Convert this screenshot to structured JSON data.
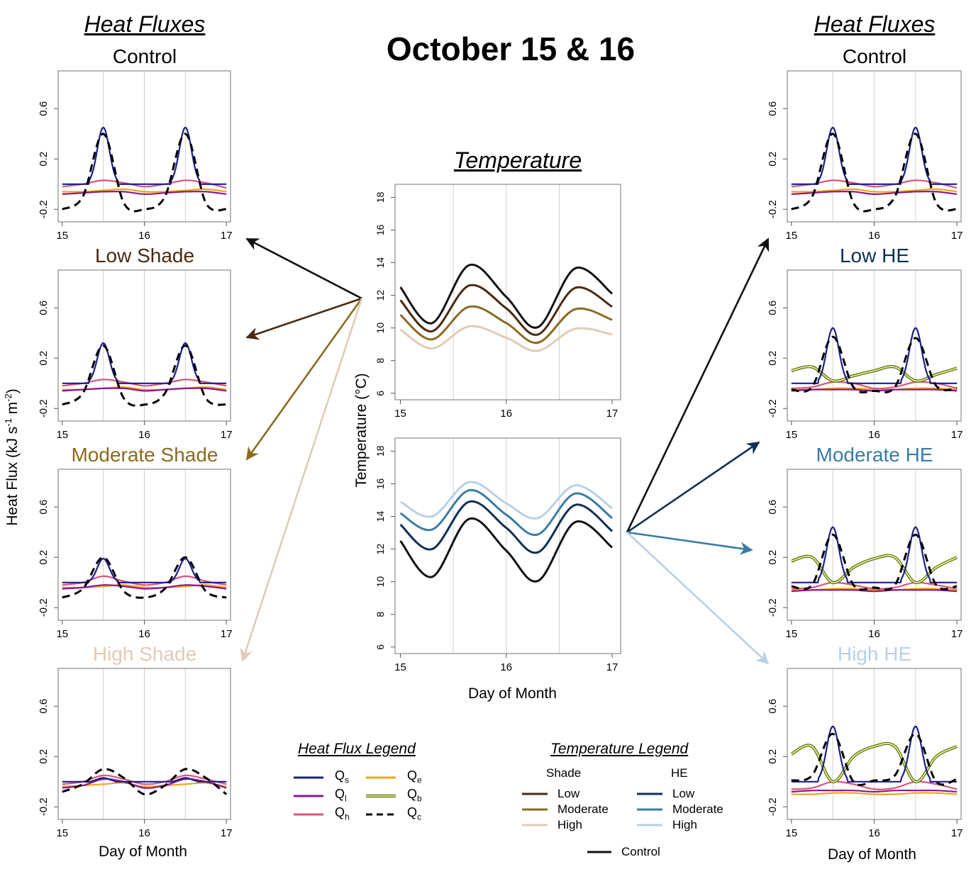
{
  "title": "October 15 & 16",
  "left_header": "Heat Fluxes",
  "right_header": "Heat Fluxes",
  "temperature_title": "Temperature",
  "flux_ylabel_main": "Heat Flux (kJ s",
  "flux_ylabel_sup1": "-1",
  "flux_ylabel_mid": " m",
  "flux_ylabel_sup2": "-2",
  "flux_ylabel_end": ")",
  "temp_ylabel": "Temperature (°C)",
  "xlabel": "Day of Month",
  "colors": {
    "Qs": "#1b1f8a",
    "Ql": "#8b1a8e",
    "Qh": "#d6587a",
    "Qe": "#f2a31b",
    "Qb": "#a8c43a",
    "Qc": "#000000",
    "control": "#111111",
    "shade_low": "#4a2a10",
    "shade_mod": "#8b6a20",
    "shade_high": "#e0cbb5",
    "he_low": "#0f2f55",
    "he_mod": "#3a7ca5",
    "he_high": "#b8d0e6"
  },
  "panels": {
    "control_left": "Control",
    "low_shade": "Low Shade",
    "mod_shade": "Moderate Shade",
    "high_shade": "High Shade",
    "control_right": "Control",
    "low_he": "Low HE",
    "mod_he": "Moderate HE",
    "high_he": "High HE"
  },
  "flux_legend": {
    "title": "Heat Flux Legend",
    "items": [
      {
        "base": "Q",
        "sub": "s"
      },
      {
        "base": "Q",
        "sub": "l"
      },
      {
        "base": "Q",
        "sub": "h"
      },
      {
        "base": "Q",
        "sub": "e"
      },
      {
        "base": "Q",
        "sub": "b"
      },
      {
        "base": "Q",
        "sub": "c"
      }
    ]
  },
  "temp_legend": {
    "title": "Temperature Legend",
    "shade_header": "Shade",
    "he_header": "HE",
    "levels": [
      "Low",
      "Moderate",
      "High"
    ],
    "control": "Control"
  },
  "chart_data": [
    {
      "type": "line",
      "panel": "Control (left)",
      "x": [
        15.0,
        15.25,
        15.5,
        15.75,
        16.0,
        16.25,
        16.5,
        16.75,
        17.0
      ],
      "xticks": [
        15,
        16,
        17
      ],
      "yticks": [
        -0.2,
        0.2,
        0.6
      ],
      "ylim": [
        -0.3,
        0.9
      ],
      "xlim": [
        14.95,
        17.05
      ],
      "series": [
        {
          "name": "Qs",
          "values": [
            0.0,
            0.0,
            0.45,
            0.0,
            0.0,
            0.0,
            0.45,
            0.0,
            0.0
          ]
        },
        {
          "name": "Qc",
          "values": [
            -0.2,
            -0.1,
            0.4,
            -0.15,
            -0.2,
            -0.1,
            0.4,
            -0.15,
            -0.2
          ]
        },
        {
          "name": "Qh",
          "values": [
            -0.02,
            0.0,
            0.03,
            0.01,
            -0.02,
            0.0,
            0.03,
            0.01,
            -0.03
          ]
        },
        {
          "name": "Ql",
          "values": [
            -0.08,
            -0.07,
            -0.06,
            -0.06,
            -0.08,
            -0.07,
            -0.06,
            -0.06,
            -0.08
          ]
        },
        {
          "name": "Qe",
          "values": [
            -0.06,
            -0.06,
            -0.05,
            -0.04,
            -0.06,
            -0.06,
            -0.05,
            -0.04,
            -0.06
          ]
        }
      ]
    },
    {
      "type": "line",
      "panel": "Low Shade",
      "x": [
        15.0,
        15.25,
        15.5,
        15.75,
        16.0,
        16.25,
        16.5,
        16.75,
        17.0
      ],
      "xticks": [
        15,
        16,
        17
      ],
      "yticks": [
        -0.2,
        0.2,
        0.6
      ],
      "ylim": [
        -0.3,
        0.9
      ],
      "xlim": [
        14.95,
        17.05
      ],
      "series": [
        {
          "name": "Qs",
          "values": [
            0.0,
            0.0,
            0.32,
            0.0,
            0.0,
            0.0,
            0.32,
            0.0,
            0.0
          ]
        },
        {
          "name": "Qc",
          "values": [
            -0.17,
            -0.08,
            0.3,
            -0.12,
            -0.17,
            -0.08,
            0.3,
            -0.12,
            -0.17
          ]
        },
        {
          "name": "Qh",
          "values": [
            -0.02,
            0.0,
            0.03,
            0.01,
            -0.02,
            0.0,
            0.03,
            0.01,
            -0.02
          ]
        },
        {
          "name": "Ql",
          "values": [
            -0.06,
            -0.05,
            -0.04,
            -0.04,
            -0.06,
            -0.05,
            -0.04,
            -0.04,
            -0.06
          ]
        },
        {
          "name": "Qe",
          "values": [
            -0.05,
            -0.05,
            -0.04,
            -0.03,
            -0.05,
            -0.05,
            -0.04,
            -0.03,
            -0.05
          ]
        }
      ]
    },
    {
      "type": "line",
      "panel": "Moderate Shade",
      "x": [
        15.0,
        15.25,
        15.5,
        15.75,
        16.0,
        16.25,
        16.5,
        16.75,
        17.0
      ],
      "xticks": [
        15,
        16,
        17
      ],
      "yticks": [
        -0.2,
        0.2,
        0.6
      ],
      "ylim": [
        -0.3,
        0.9
      ],
      "xlim": [
        14.95,
        17.05
      ],
      "series": [
        {
          "name": "Qs",
          "values": [
            0.0,
            0.0,
            0.19,
            0.0,
            0.0,
            0.0,
            0.19,
            0.0,
            0.0
          ]
        },
        {
          "name": "Qc",
          "values": [
            -0.12,
            -0.05,
            0.2,
            -0.07,
            -0.12,
            -0.05,
            0.2,
            -0.07,
            -0.12
          ]
        },
        {
          "name": "Qh",
          "values": [
            -0.02,
            0.0,
            0.05,
            0.01,
            -0.02,
            0.0,
            0.05,
            0.01,
            -0.02
          ]
        },
        {
          "name": "Ql",
          "values": [
            -0.05,
            -0.04,
            -0.02,
            -0.03,
            -0.05,
            -0.04,
            -0.02,
            -0.03,
            -0.05
          ]
        },
        {
          "name": "Qe",
          "values": [
            -0.04,
            -0.04,
            -0.03,
            -0.02,
            -0.04,
            -0.04,
            -0.03,
            -0.02,
            -0.04
          ]
        }
      ]
    },
    {
      "type": "line",
      "panel": "High Shade",
      "x": [
        15.0,
        15.25,
        15.5,
        15.75,
        16.0,
        16.25,
        16.5,
        16.75,
        17.0
      ],
      "xticks": [
        15,
        16,
        17
      ],
      "yticks": [
        -0.2,
        0.2,
        0.6
      ],
      "ylim": [
        -0.3,
        0.9
      ],
      "xlim": [
        14.95,
        17.05
      ],
      "series": [
        {
          "name": "Qs",
          "values": [
            0.0,
            0.0,
            0.03,
            0.0,
            0.0,
            0.0,
            0.03,
            0.0,
            0.0
          ]
        },
        {
          "name": "Qc",
          "values": [
            -0.08,
            -0.02,
            0.1,
            0.03,
            -0.1,
            -0.03,
            0.1,
            0.03,
            -0.1
          ]
        },
        {
          "name": "Qh",
          "values": [
            -0.02,
            0.0,
            0.05,
            0.02,
            -0.02,
            0.0,
            0.05,
            0.02,
            -0.02
          ]
        },
        {
          "name": "Ql",
          "values": [
            -0.05,
            -0.03,
            0.02,
            0.0,
            -0.05,
            -0.03,
            0.02,
            0.0,
            -0.05
          ]
        },
        {
          "name": "Qe",
          "values": [
            -0.04,
            -0.03,
            -0.02,
            -0.01,
            -0.04,
            -0.03,
            -0.02,
            -0.01,
            -0.04
          ]
        }
      ]
    },
    {
      "type": "line",
      "panel": "Control (right)",
      "x": [
        15.0,
        15.25,
        15.5,
        15.75,
        16.0,
        16.25,
        16.5,
        16.75,
        17.0
      ],
      "xticks": [
        15,
        16,
        17
      ],
      "yticks": [
        -0.2,
        0.2,
        0.6
      ],
      "ylim": [
        -0.3,
        0.9
      ],
      "xlim": [
        14.95,
        17.05
      ],
      "series": [
        {
          "name": "Qs",
          "values": [
            0.0,
            0.0,
            0.45,
            0.0,
            0.0,
            0.0,
            0.45,
            0.0,
            0.0
          ]
        },
        {
          "name": "Qc",
          "values": [
            -0.2,
            -0.1,
            0.4,
            -0.15,
            -0.2,
            -0.1,
            0.4,
            -0.15,
            -0.2
          ]
        },
        {
          "name": "Qh",
          "values": [
            -0.02,
            0.0,
            0.03,
            0.01,
            -0.02,
            0.0,
            0.03,
            0.01,
            -0.03
          ]
        },
        {
          "name": "Ql",
          "values": [
            -0.08,
            -0.07,
            -0.06,
            -0.06,
            -0.08,
            -0.07,
            -0.06,
            -0.06,
            -0.08
          ]
        },
        {
          "name": "Qe",
          "values": [
            -0.06,
            -0.06,
            -0.05,
            -0.04,
            -0.06,
            -0.06,
            -0.05,
            -0.04,
            -0.06
          ]
        }
      ]
    },
    {
      "type": "line",
      "panel": "Low HE",
      "x": [
        15.0,
        15.25,
        15.5,
        15.75,
        16.0,
        16.25,
        16.5,
        16.75,
        17.0
      ],
      "xticks": [
        15,
        16,
        17
      ],
      "yticks": [
        -0.2,
        0.2,
        0.6
      ],
      "ylim": [
        -0.3,
        0.9
      ],
      "xlim": [
        14.95,
        17.05
      ],
      "series": [
        {
          "name": "Qs",
          "values": [
            0.0,
            0.0,
            0.44,
            0.0,
            0.0,
            0.0,
            0.44,
            0.0,
            0.0
          ]
        },
        {
          "name": "Qc",
          "values": [
            -0.05,
            -0.03,
            0.37,
            -0.03,
            -0.06,
            -0.03,
            0.36,
            -0.02,
            -0.04
          ]
        },
        {
          "name": "Qb",
          "values": [
            0.1,
            0.13,
            0.02,
            0.06,
            0.1,
            0.13,
            0.02,
            0.07,
            0.12
          ]
        },
        {
          "name": "Qh",
          "values": [
            -0.04,
            -0.03,
            0.01,
            0.0,
            -0.04,
            -0.03,
            0.01,
            0.0,
            -0.04
          ]
        },
        {
          "name": "Ql",
          "values": [
            -0.06,
            -0.05,
            -0.05,
            -0.05,
            -0.06,
            -0.05,
            -0.05,
            -0.05,
            -0.06
          ]
        },
        {
          "name": "Qe",
          "values": [
            -0.05,
            -0.05,
            -0.04,
            -0.04,
            -0.05,
            -0.05,
            -0.04,
            -0.04,
            -0.05
          ]
        }
      ]
    },
    {
      "type": "line",
      "panel": "Moderate HE",
      "x": [
        15.0,
        15.25,
        15.5,
        15.75,
        16.0,
        16.25,
        16.5,
        16.75,
        17.0
      ],
      "xticks": [
        15,
        16,
        17
      ],
      "yticks": [
        -0.2,
        0.2,
        0.6
      ],
      "ylim": [
        -0.3,
        0.9
      ],
      "xlim": [
        14.95,
        17.05
      ],
      "series": [
        {
          "name": "Qs",
          "values": [
            0.0,
            0.0,
            0.44,
            0.0,
            0.0,
            0.0,
            0.44,
            0.0,
            0.0
          ]
        },
        {
          "name": "Qc",
          "values": [
            -0.03,
            -0.02,
            0.38,
            -0.02,
            -0.04,
            -0.02,
            0.38,
            -0.02,
            -0.03
          ]
        },
        {
          "name": "Qb",
          "values": [
            0.17,
            0.2,
            0.0,
            0.12,
            0.19,
            0.2,
            0.0,
            0.12,
            0.2
          ]
        },
        {
          "name": "Qh",
          "values": [
            -0.05,
            -0.04,
            0.0,
            -0.02,
            -0.05,
            -0.04,
            0.0,
            -0.02,
            -0.05
          ]
        },
        {
          "name": "Ql",
          "values": [
            -0.07,
            -0.06,
            -0.06,
            -0.06,
            -0.07,
            -0.06,
            -0.06,
            -0.06,
            -0.07
          ]
        },
        {
          "name": "Qe",
          "values": [
            -0.06,
            -0.06,
            -0.05,
            -0.05,
            -0.06,
            -0.06,
            -0.05,
            -0.05,
            -0.06
          ]
        }
      ]
    },
    {
      "type": "line",
      "panel": "High HE",
      "x": [
        15.0,
        15.25,
        15.5,
        15.75,
        16.0,
        16.25,
        16.5,
        16.75,
        17.0
      ],
      "xticks": [
        15,
        16,
        17
      ],
      "yticks": [
        -0.2,
        0.2,
        0.6
      ],
      "ylim": [
        -0.3,
        0.9
      ],
      "xlim": [
        14.95,
        17.05
      ],
      "series": [
        {
          "name": "Qs",
          "values": [
            0.0,
            0.0,
            0.44,
            0.0,
            0.0,
            0.0,
            0.44,
            0.0,
            0.0
          ]
        },
        {
          "name": "Qc",
          "values": [
            0.01,
            0.05,
            0.38,
            0.0,
            0.01,
            0.05,
            0.38,
            0.0,
            0.02
          ]
        },
        {
          "name": "Qb",
          "values": [
            0.22,
            0.28,
            0.0,
            0.2,
            0.28,
            0.28,
            0.0,
            0.2,
            0.28
          ]
        },
        {
          "name": "Qh",
          "values": [
            -0.06,
            -0.05,
            0.0,
            -0.02,
            -0.06,
            -0.05,
            0.0,
            -0.02,
            -0.06
          ]
        },
        {
          "name": "Ql",
          "values": [
            -0.08,
            -0.07,
            -0.07,
            -0.07,
            -0.08,
            -0.07,
            -0.07,
            -0.07,
            -0.08
          ]
        },
        {
          "name": "Qe",
          "values": [
            -0.1,
            -0.1,
            -0.09,
            -0.09,
            -0.1,
            -0.1,
            -0.09,
            -0.09,
            -0.1
          ]
        }
      ]
    },
    {
      "type": "line",
      "panel": "Temperature (shade)",
      "x": [
        15.0,
        15.3,
        15.65,
        16.0,
        16.3,
        16.65,
        17.0
      ],
      "xticks": [
        15,
        16,
        17
      ],
      "yticks": [
        6,
        8,
        10,
        12,
        14,
        16,
        18
      ],
      "ylim": [
        5.6,
        18.8
      ],
      "xlim": [
        14.95,
        17.08
      ],
      "series": [
        {
          "name": "Control",
          "values": [
            12.5,
            10.3,
            13.85,
            11.9,
            10.05,
            13.65,
            12.1
          ]
        },
        {
          "name": "Low",
          "values": [
            11.7,
            9.8,
            12.6,
            11.2,
            9.6,
            12.45,
            11.3
          ]
        },
        {
          "name": "Moderate",
          "values": [
            10.8,
            9.3,
            11.3,
            10.3,
            9.1,
            11.15,
            10.5
          ]
        },
        {
          "name": "High",
          "values": [
            9.9,
            8.75,
            10.1,
            9.4,
            8.6,
            9.95,
            9.6
          ]
        }
      ]
    },
    {
      "type": "line",
      "panel": "Temperature (HE)",
      "x": [
        15.0,
        15.3,
        15.65,
        16.0,
        16.3,
        16.65,
        17.0
      ],
      "xticks": [
        15,
        16,
        17
      ],
      "yticks": [
        6,
        8,
        10,
        12,
        14,
        16,
        18
      ],
      "ylim": [
        5.6,
        18.8
      ],
      "xlim": [
        14.95,
        17.08
      ],
      "series": [
        {
          "name": "Control",
          "values": [
            12.5,
            10.3,
            13.85,
            11.9,
            10.05,
            13.65,
            12.1
          ]
        },
        {
          "name": "Low",
          "values": [
            13.5,
            12.0,
            14.9,
            13.3,
            11.8,
            14.7,
            13.1
          ]
        },
        {
          "name": "Moderate",
          "values": [
            14.2,
            13.2,
            15.6,
            14.1,
            12.9,
            15.4,
            13.9
          ]
        },
        {
          "name": "High",
          "values": [
            14.9,
            14.0,
            16.1,
            14.8,
            13.9,
            15.9,
            14.5
          ]
        }
      ]
    }
  ]
}
